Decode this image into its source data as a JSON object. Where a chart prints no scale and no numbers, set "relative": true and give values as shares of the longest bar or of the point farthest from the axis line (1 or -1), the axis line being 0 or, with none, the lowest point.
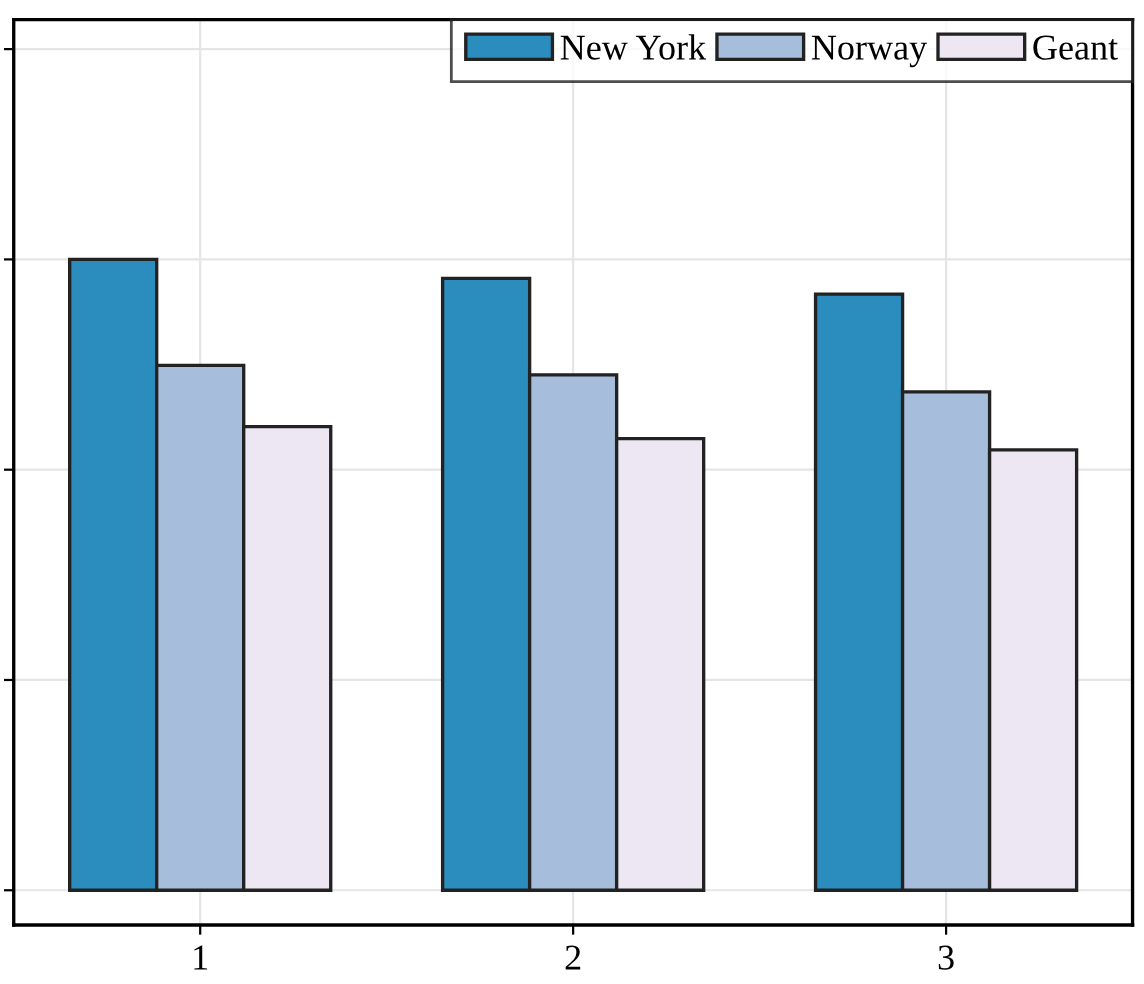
{
  "chart_data": {
    "type": "bar",
    "relative": true,
    "categories": [
      "1",
      "2",
      "3"
    ],
    "series": [
      {
        "name": "New York",
        "color": "#2b8cbe",
        "values": [
          1,
          0.97,
          0.945
        ]
      },
      {
        "name": "Norway",
        "color": "#a6bddb",
        "values": [
          0.832,
          0.817,
          0.79
        ]
      },
      {
        "name": "Geant",
        "color": "#ece7f2",
        "values": [
          0.735,
          0.716,
          0.698
        ]
      }
    ],
    "grid": true,
    "legend": "top right"
  }
}
